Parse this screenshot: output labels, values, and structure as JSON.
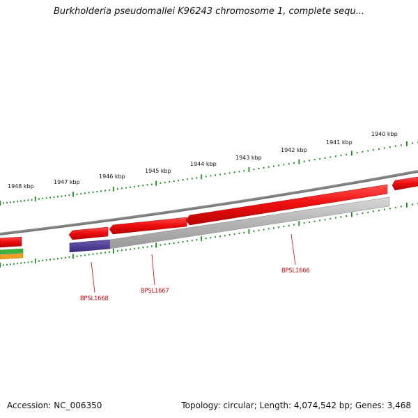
{
  "title": "Burkholderia pseudomallei K96243 chromosome 1, complete sequ...",
  "footer": {
    "accession": "Accession: NC_006350",
    "summary": "Topology: circular; Length: 4,074,542 bp; Genes: 3,468"
  },
  "ruler": {
    "labels": [
      "1948 kbp",
      "1947 kbp",
      "1946 kbp",
      "1945 kbp",
      "1944 kbp",
      "1943 kbp",
      "1942 kbp",
      "1941 kbp",
      "1940 kbp"
    ]
  },
  "genes": [
    {
      "label": "BPSL1668"
    },
    {
      "label": "BPSL1667"
    },
    {
      "label": "BPSL1666"
    }
  ],
  "colors": {
    "tick": "#1a8a1a",
    "backbone": "#808080",
    "cds": "#e81010",
    "cds_dark": "#b00000",
    "gray_feature": "#b8b8b8",
    "purple_feature": "#4a3a8c",
    "green_feature": "#3cb43c",
    "orange_feature": "#f0a020",
    "label": "#cc0000"
  }
}
